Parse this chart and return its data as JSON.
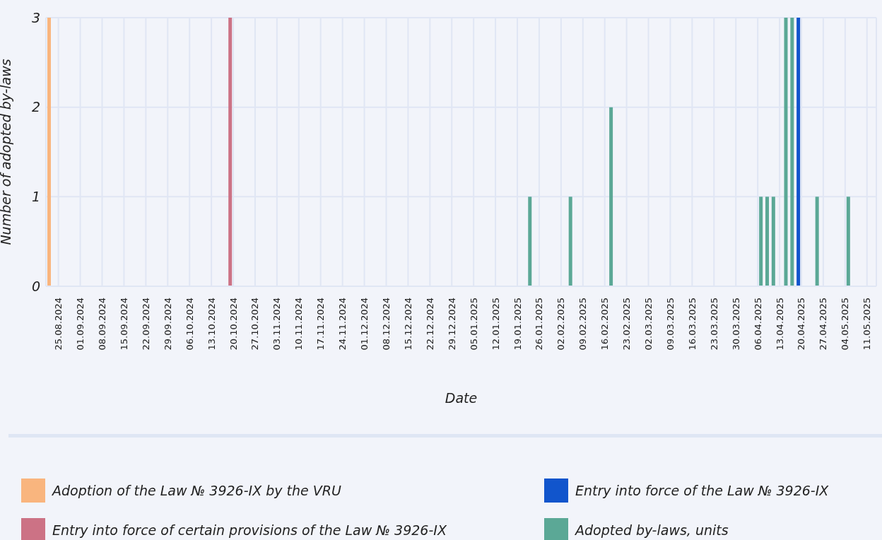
{
  "chart_data": {
    "type": "bar",
    "xlabel": "Date",
    "ylabel": "Number of adopted by-laws",
    "xlim": [
      "2024-08-21",
      "2025-05-14"
    ],
    "xticks": [
      {
        "value": "2024-08-25",
        "label": "25.08.2024"
      },
      {
        "value": "2024-09-01",
        "label": "01.09.2024"
      },
      {
        "value": "2024-09-08",
        "label": "08.09.2024"
      },
      {
        "value": "2024-09-15",
        "label": "15.09.2024"
      },
      {
        "value": "2024-09-22",
        "label": "22.09.2024"
      },
      {
        "value": "2024-09-29",
        "label": "29.09.2024"
      },
      {
        "value": "2024-10-06",
        "label": "06.10.2024"
      },
      {
        "value": "2024-10-13",
        "label": "13.10.2024"
      },
      {
        "value": "2024-10-20",
        "label": "20.10.2024"
      },
      {
        "value": "2024-10-27",
        "label": "27.10.2024"
      },
      {
        "value": "2024-11-03",
        "label": "03.11.2024"
      },
      {
        "value": "2024-11-10",
        "label": "10.11.2024"
      },
      {
        "value": "2024-11-17",
        "label": "17.11.2024"
      },
      {
        "value": "2024-11-24",
        "label": "24.11.2024"
      },
      {
        "value": "2024-12-01",
        "label": "01.12.2024"
      },
      {
        "value": "2024-12-08",
        "label": "08.12.2024"
      },
      {
        "value": "2024-12-15",
        "label": "15.12.2024"
      },
      {
        "value": "2024-12-22",
        "label": "22.12.2024"
      },
      {
        "value": "2024-12-29",
        "label": "29.12.2024"
      },
      {
        "value": "2025-01-05",
        "label": "05.01.2025"
      },
      {
        "value": "2025-01-12",
        "label": "12.01.2025"
      },
      {
        "value": "2025-01-19",
        "label": "19.01.2025"
      },
      {
        "value": "2025-01-26",
        "label": "26.01.2025"
      },
      {
        "value": "2025-02-02",
        "label": "02.02.2025"
      },
      {
        "value": "2025-02-09",
        "label": "09.02.2025"
      },
      {
        "value": "2025-02-16",
        "label": "16.02.2025"
      },
      {
        "value": "2025-02-23",
        "label": "23.02.2025"
      },
      {
        "value": "2025-03-02",
        "label": "02.03.2025"
      },
      {
        "value": "2025-03-09",
        "label": "09.03.2025"
      },
      {
        "value": "2025-03-16",
        "label": "16.03.2025"
      },
      {
        "value": "2025-03-23",
        "label": "23.03.2025"
      },
      {
        "value": "2025-03-30",
        "label": "30.03.2025"
      },
      {
        "value": "2025-04-06",
        "label": "06.04.2025"
      },
      {
        "value": "2025-04-13",
        "label": "13.04.2025"
      },
      {
        "value": "2025-04-20",
        "label": "20.04.2025"
      },
      {
        "value": "2025-04-27",
        "label": "27.04.2025"
      },
      {
        "value": "2025-05-04",
        "label": "04.05.2025"
      },
      {
        "value": "2025-05-11",
        "label": "11.05.2025"
      }
    ],
    "ylim": [
      0,
      3
    ],
    "yticks": [
      0,
      1,
      2,
      3
    ],
    "grid": true,
    "legend": "bottom",
    "series": [
      {
        "name": "Adoption of the Law № 3926-IX by the VRU",
        "color": "#f9b57e",
        "x": [
          "2024-08-22"
        ],
        "values": [
          3
        ]
      },
      {
        "name": "Entry into force of certain provisions of the Law № 3926-IX",
        "color": "#cc7285",
        "x": [
          "2024-10-19"
        ],
        "values": [
          3
        ]
      },
      {
        "name": "Entry into force of the Law № 3926-IX",
        "color": "#1155cc",
        "x": [
          "2025-04-19"
        ],
        "values": [
          3
        ]
      },
      {
        "name": "Adopted by-laws, units",
        "color": "#5ba896",
        "x": [
          "2025-01-23",
          "2025-02-05",
          "2025-02-18",
          "2025-04-07",
          "2025-04-09",
          "2025-04-11",
          "2025-04-15",
          "2025-04-17",
          "2025-04-25",
          "2025-05-05"
        ],
        "values": [
          1,
          1,
          2,
          1,
          1,
          1,
          3,
          3,
          1,
          1
        ]
      }
    ]
  }
}
